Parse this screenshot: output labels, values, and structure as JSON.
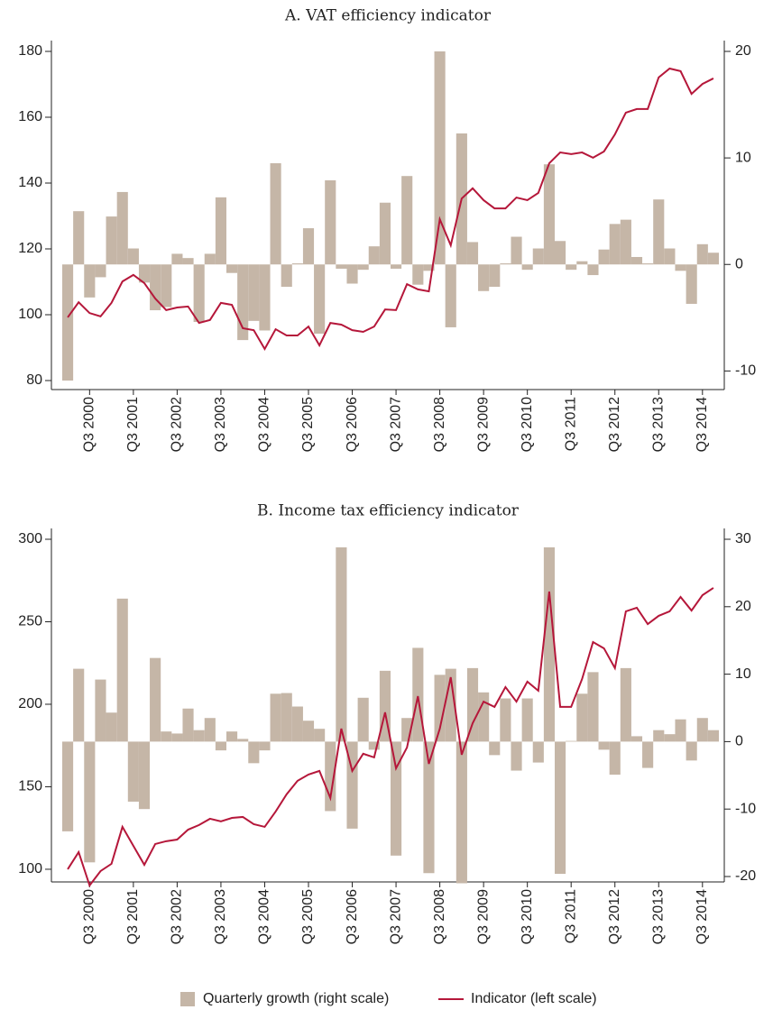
{
  "chart_data": [
    {
      "type": "combo",
      "title": "A. VAT efficiency indicator",
      "categories": [
        null,
        null,
        "Q3 2000",
        null,
        null,
        null,
        "Q3 2001",
        null,
        null,
        null,
        "Q3 2002",
        null,
        null,
        null,
        "Q3 2003",
        null,
        null,
        null,
        "Q3 2004",
        null,
        null,
        null,
        "Q3 2005",
        null,
        null,
        null,
        "Q3 2006",
        null,
        null,
        null,
        "Q3 2007",
        null,
        null,
        null,
        "Q3 2008",
        null,
        null,
        null,
        "Q3 2009",
        null,
        null,
        null,
        "Q3 2010",
        null,
        null,
        null,
        "Q3 2011",
        null,
        null,
        null,
        "Q3 2012",
        null,
        null,
        null,
        "Q3 2013",
        null,
        null,
        null,
        "Q3 2014",
        null
      ],
      "ylim": [
        80,
        180
      ],
      "yticks": [
        80,
        100,
        120,
        140,
        160,
        180
      ],
      "y2lim": [
        -10.9,
        20
      ],
      "y2ticks": [
        -10,
        0,
        10,
        20
      ],
      "series": [
        {
          "name": "Quarterly growth (right scale)",
          "kind": "bar",
          "axis": "y2",
          "color": "#c5b6a7",
          "values": [
            -10.9,
            5,
            -3.1,
            -1.2,
            4.5,
            6.8,
            1.5,
            -1.7,
            -4.3,
            -4,
            1,
            0.6,
            -5.4,
            1,
            6.3,
            -0.8,
            -7.1,
            -5.3,
            -6.2,
            9.5,
            -2.1,
            0.1,
            3.4,
            -6.5,
            7.9,
            -0.4,
            -1.8,
            -0.5,
            1.7,
            5.8,
            -0.4,
            8.3,
            -1.9,
            -0.6,
            20,
            -5.9,
            12.3,
            2.1,
            -2.5,
            -2.1,
            0.1,
            2.6,
            -0.5,
            1.5,
            9.4,
            2.2,
            -0.5,
            0.3,
            -1,
            1.4,
            3.8,
            4.2,
            0.7,
            0.1,
            6.1,
            1.5,
            -0.6,
            -3.7,
            1.9,
            1.1
          ]
        },
        {
          "name": "Indicator (left scale)",
          "kind": "line",
          "color": "#b5173a",
          "values": [
            99.2,
            103.8,
            100.5,
            99.5,
            103.6,
            110.1,
            112.1,
            109.6,
            104.9,
            101.4,
            102.2,
            102.5,
            97.5,
            98.4,
            103.6,
            103,
            95.9,
            95.3,
            89.6,
            95.6,
            93.7,
            93.7,
            96.4,
            90.7,
            97.5,
            97,
            95.3,
            94.8,
            96.4,
            101.6,
            101.4,
            109.3,
            107.7,
            107.1,
            129,
            121.1,
            135.3,
            138.4,
            134.8,
            132.3,
            132.3,
            135.6,
            134.8,
            137,
            146,
            149.3,
            148.8,
            149.3,
            147.7,
            149.6,
            154.8,
            161.4,
            162.5,
            162.5,
            172.1,
            174.8,
            174,
            167.1,
            170.1,
            171.8
          ]
        }
      ]
    },
    {
      "type": "combo",
      "title": "B. Income tax efficiency indicator",
      "categories": [
        null,
        null,
        "Q3 2000",
        null,
        null,
        null,
        "Q3 2001",
        null,
        null,
        null,
        "Q3 2002",
        null,
        null,
        null,
        "Q3 2003",
        null,
        null,
        null,
        "Q3 2004",
        null,
        null,
        null,
        "Q3 2005",
        null,
        null,
        null,
        "Q3 2006",
        null,
        null,
        null,
        "Q3 2007",
        null,
        null,
        null,
        "Q3 2008",
        null,
        null,
        null,
        "Q3 2009",
        null,
        null,
        null,
        "Q3 2010",
        null,
        null,
        null,
        "Q3 2011",
        null,
        null,
        null,
        "Q3 2012",
        null,
        null,
        null,
        "Q3 2013",
        null,
        null,
        null,
        "Q3 2014",
        null
      ],
      "ylim": [
        95.6,
        300
      ],
      "yticks": [
        100,
        150,
        200,
        250,
        300
      ],
      "y2lim": [
        -20,
        30
      ],
      "y2ticks": [
        -20,
        -10,
        0,
        10,
        20,
        30
      ],
      "series": [
        {
          "kind": "bar",
          "axis": "y2",
          "color": "#c5b6a7",
          "values": [
            -13.3,
            10.8,
            -17.9,
            9.2,
            4.3,
            21.2,
            -8.9,
            -10,
            12.4,
            1.5,
            1.2,
            4.9,
            1.7,
            3.5,
            -1.3,
            1.5,
            0.4,
            -3.2,
            -1.3,
            7.1,
            7.2,
            5.2,
            3.1,
            1.9,
            -10.3,
            28.8,
            -12.9,
            6.5,
            -1.2,
            10.5,
            -16.9,
            3.5,
            13.9,
            -19.5,
            9.9,
            10.8,
            -21,
            10.9,
            7.3,
            -2,
            6.4,
            -4.3,
            6.4,
            -3.1,
            28.8,
            -19.6,
            0.1,
            7.1,
            10.3,
            -1.2,
            -4.9,
            10.9,
            0.8,
            -3.9,
            1.7,
            1.1,
            3.3,
            -2.8,
            3.5,
            1.7
          ]
        },
        {
          "kind": "line",
          "color": "#b5173a",
          "values": [
            100,
            110.4,
            90.2,
            98.9,
            103.3,
            125.7,
            114.2,
            102.7,
            115.3,
            117,
            118,
            124,
            126.8,
            130.6,
            129,
            131.1,
            131.7,
            127.3,
            125.7,
            135,
            145.4,
            153.6,
            157.4,
            159.6,
            143.2,
            185.2,
            159.6,
            170,
            167.8,
            195.1,
            161.2,
            173.8,
            204.9,
            163.9,
            185.2,
            216.4,
            169.4,
            188.5,
            201.6,
            198.4,
            210.4,
            201.6,
            213.7,
            208.2,
            268.3,
            198.4,
            198.4,
            215.3,
            237.7,
            233.9,
            221.9,
            256.3,
            258.5,
            248.6,
            253.6,
            256.3,
            265,
            256.8,
            266.1,
            270.5
          ]
        }
      ]
    }
  ]
}
